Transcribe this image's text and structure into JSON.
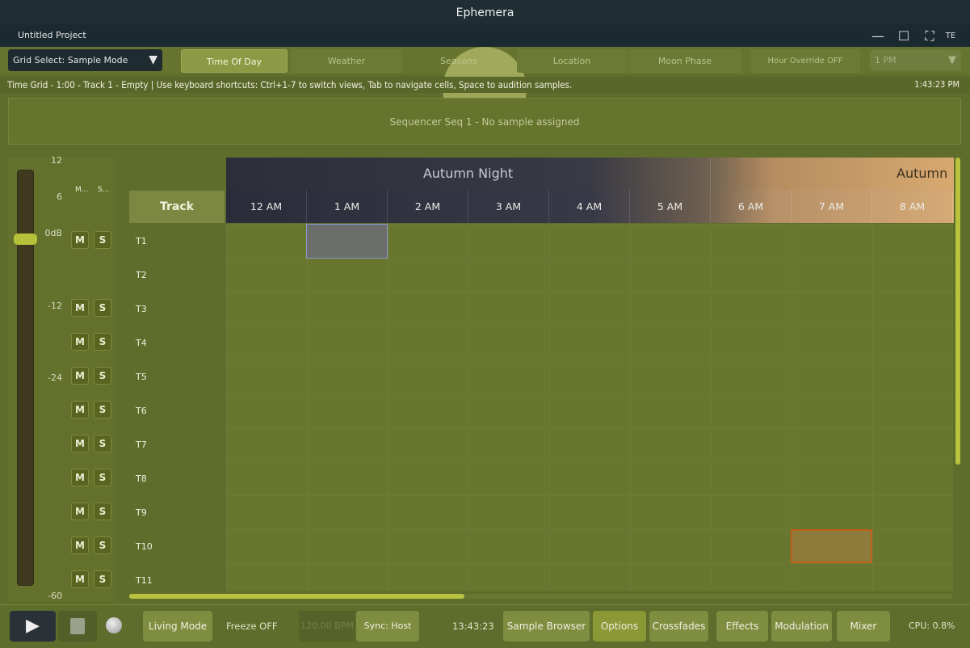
{
  "window": {
    "title": "Ephemera",
    "project": "Untitled Project",
    "truncated_label": "TE"
  },
  "toolbar": {
    "grid_select": "Grid Select: Sample Mode",
    "tabs": [
      "Time Of Day",
      "Weather",
      "Seasons",
      "Location",
      "Moon Phase"
    ],
    "active_tab": "Time Of Day",
    "hour_override": "Hour Override OFF",
    "hour_value": "1 PM"
  },
  "status": {
    "text": "Time Grid - 1:00 - Track 1 - Empty | Use keyboard shortcuts: Ctrl+1-7 to switch views, Tab to navigate cells, Space to audition samples.",
    "clock": "1:43:23 PM"
  },
  "sequencer": {
    "text": "Sequencer Seq 1 - No sample assigned"
  },
  "mixer": {
    "db_labels": [
      "12",
      "6",
      "0dB",
      "-12",
      "-24",
      "-60"
    ],
    "mute_header": "M...",
    "solo_header": "S...",
    "mute": "M",
    "solo": "S",
    "fader_level_db": 0
  },
  "grid": {
    "track_header": "Track",
    "bands": [
      "Autumn Night",
      "Autumn"
    ],
    "hours": [
      "12 AM",
      "1 AM",
      "2 AM",
      "3 AM",
      "4 AM",
      "5 AM",
      "6 AM",
      "7 AM",
      "8 AM"
    ],
    "tracks": [
      "T1",
      "T2",
      "T3",
      "T4",
      "T5",
      "T6",
      "T7",
      "T8",
      "T9",
      "T10",
      "T11"
    ]
  },
  "bottom": {
    "living_mode": "Living Mode",
    "freeze": "Freeze OFF",
    "bpm": "120.00 BPM",
    "sync": "Sync: Host",
    "time": "13:43:23",
    "buttons": [
      "Sample Browser",
      "Options",
      "Crossfades",
      "Effects",
      "Modulation",
      "Mixer"
    ],
    "cpu": "CPU: 0.8%"
  }
}
